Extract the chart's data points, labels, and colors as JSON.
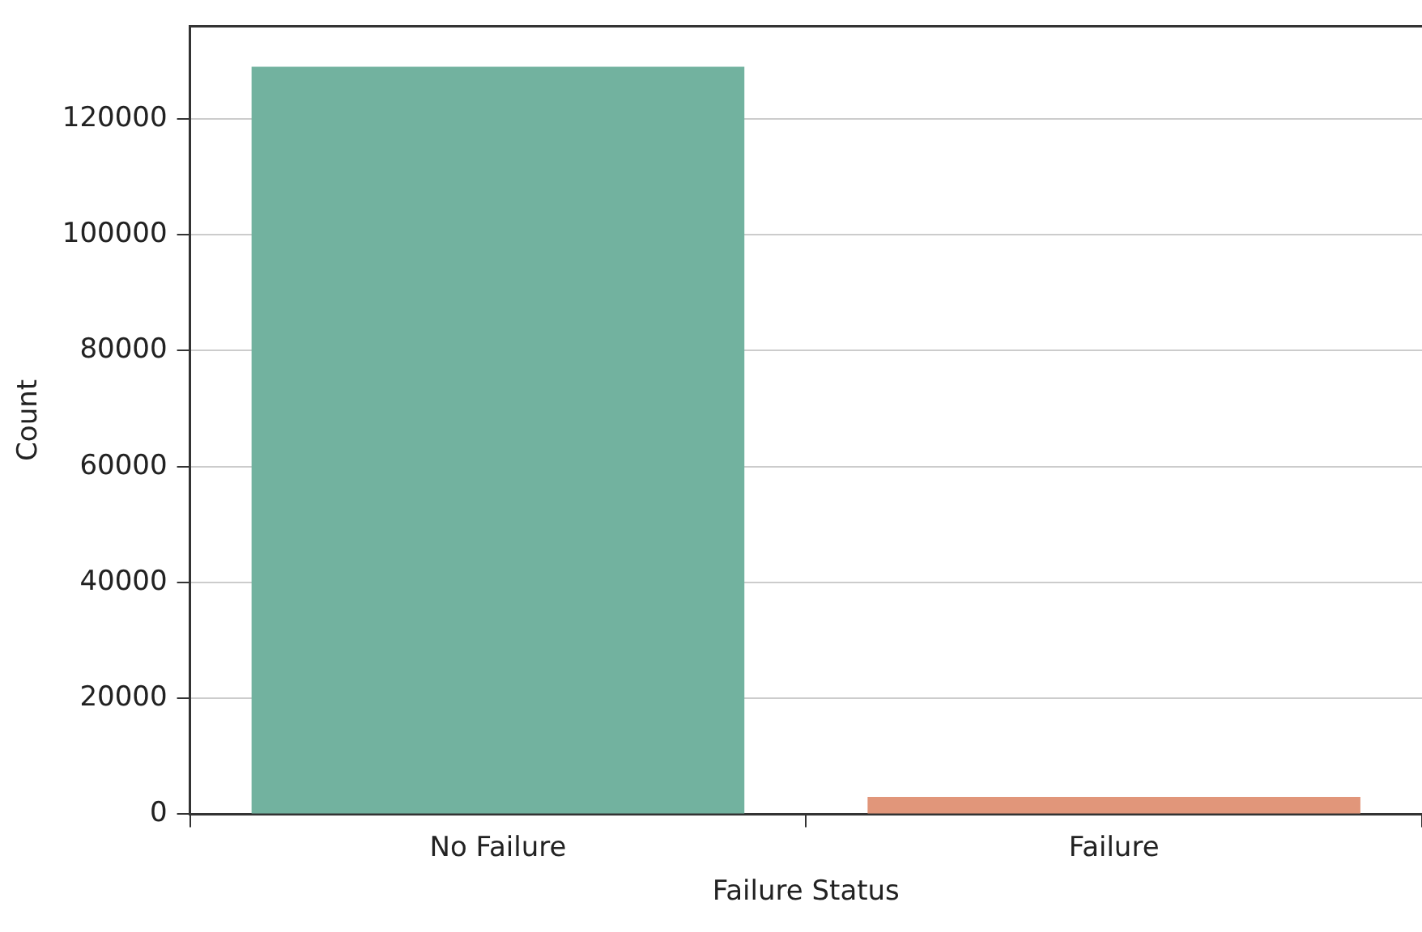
{
  "chart_data": {
    "type": "bar",
    "xlabel": "Failure Status",
    "ylabel": "Count",
    "categories": [
      "No Failure",
      "Failure"
    ],
    "values": [
      129000,
      3000
    ],
    "colors": [
      "#72b29f",
      "#e1967a"
    ],
    "ylim": [
      0,
      136000
    ],
    "yticks": [
      0,
      20000,
      40000,
      60000,
      80000,
      100000,
      120000
    ],
    "grid": "y"
  }
}
